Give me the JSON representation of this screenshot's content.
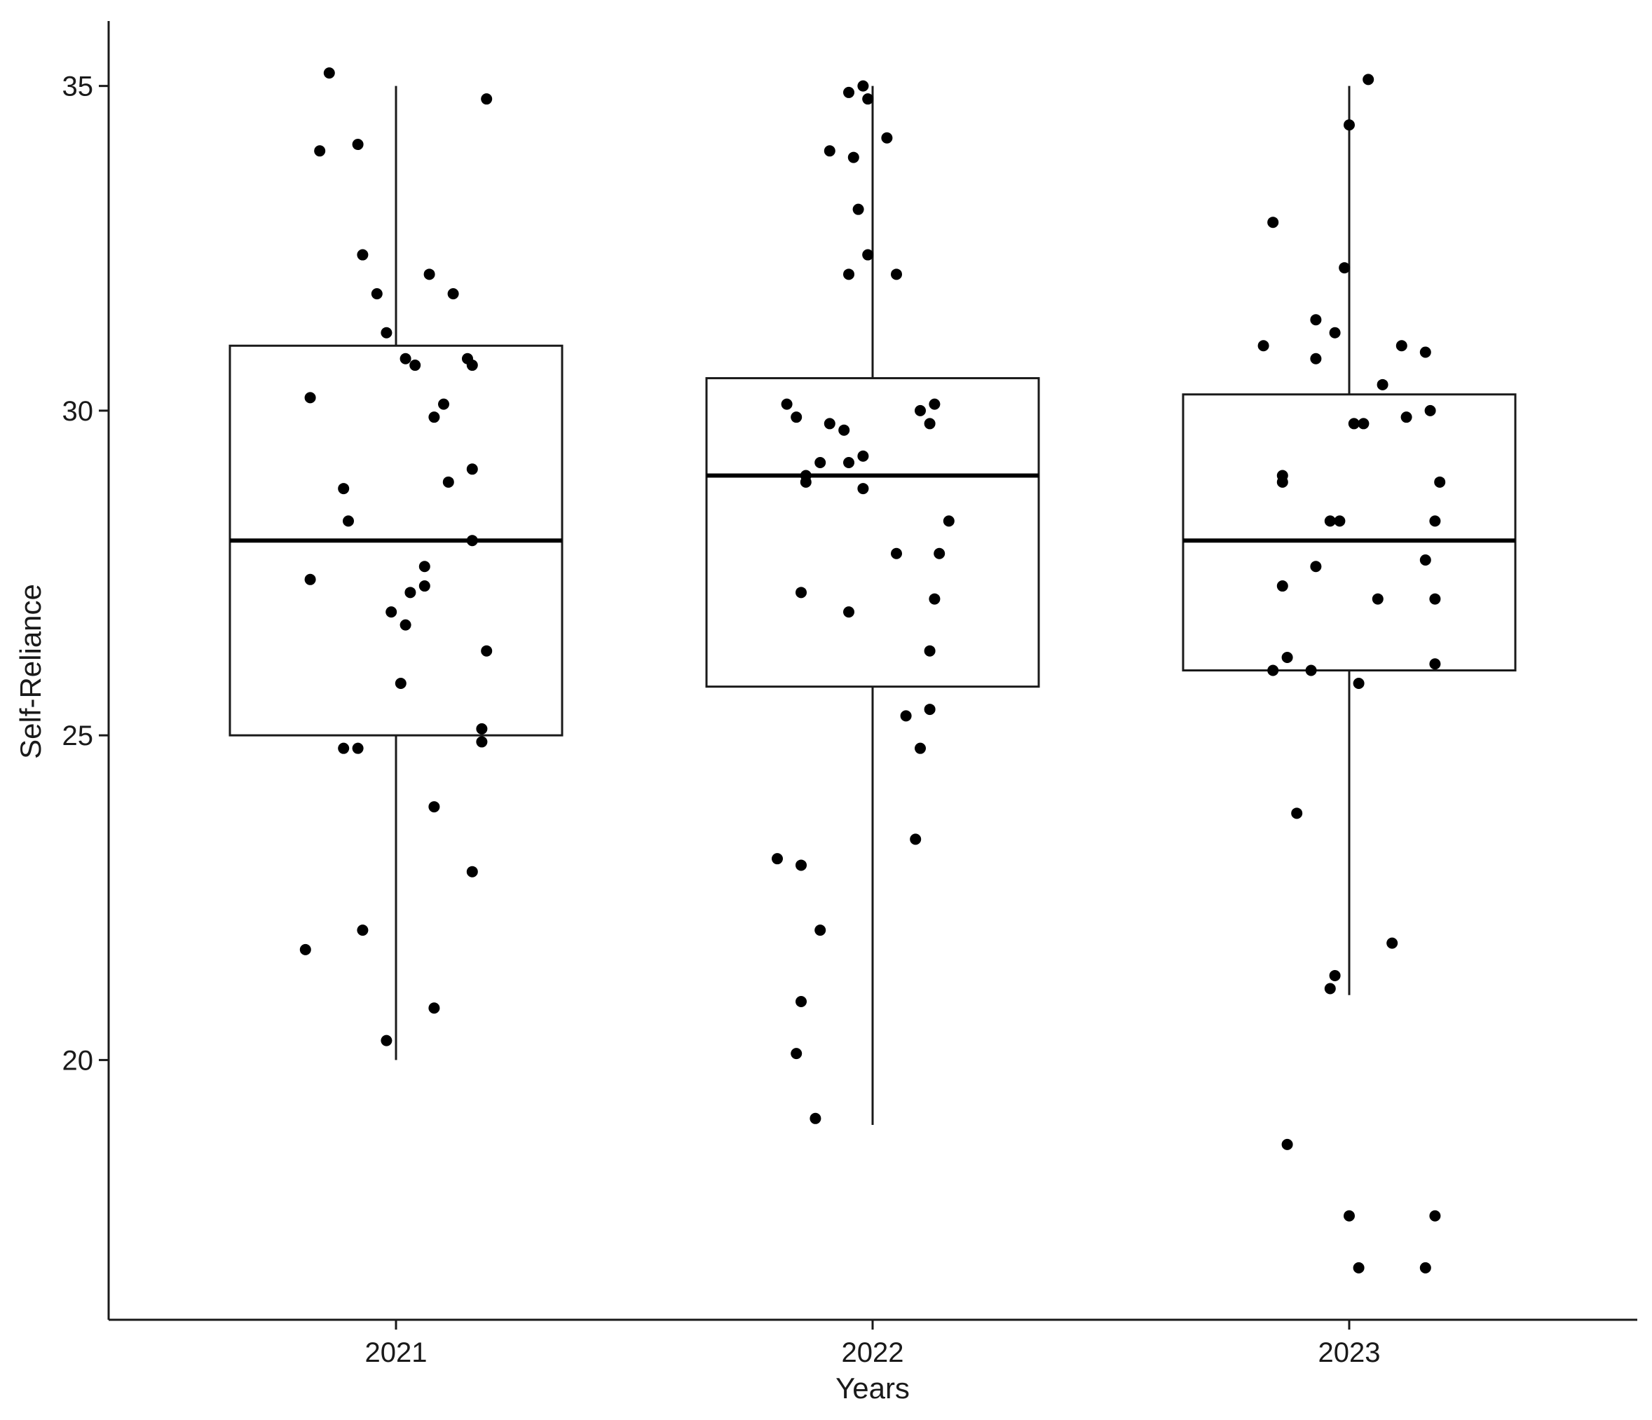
{
  "chart_data": {
    "type": "box",
    "xlabel": "Years",
    "ylabel": "Self-Reliance",
    "ylim": [
      16.0,
      36.0
    ],
    "yticks": [
      20,
      25,
      30,
      35
    ],
    "categories": [
      "2021",
      "2022",
      "2023"
    ],
    "grid": false,
    "boxes": [
      {
        "category": "2021",
        "whisker_low": 20.0,
        "q1": 25.0,
        "median": 28.0,
        "q3": 31.0,
        "whisker_high": 35.0
      },
      {
        "category": "2022",
        "whisker_low": 19.0,
        "q1": 25.75,
        "median": 29.0,
        "q3": 30.5,
        "whisker_high": 35.0
      },
      {
        "category": "2023",
        "whisker_low": 21.0,
        "q1": 26.0,
        "median": 28.0,
        "q3": 30.25,
        "whisker_high": 35.0
      }
    ],
    "points": [
      {
        "category": "2021",
        "jitter": -0.14,
        "value": 35.2
      },
      {
        "category": "2021",
        "jitter": 0.19,
        "value": 34.8
      },
      {
        "category": "2021",
        "jitter": -0.16,
        "value": 34.0
      },
      {
        "category": "2021",
        "jitter": -0.08,
        "value": 34.1
      },
      {
        "category": "2021",
        "jitter": -0.07,
        "value": 32.4
      },
      {
        "category": "2021",
        "jitter": 0.07,
        "value": 32.1
      },
      {
        "category": "2021",
        "jitter": -0.04,
        "value": 31.8
      },
      {
        "category": "2021",
        "jitter": 0.12,
        "value": 31.8
      },
      {
        "category": "2021",
        "jitter": -0.02,
        "value": 31.2
      },
      {
        "category": "2021",
        "jitter": 0.02,
        "value": 30.8
      },
      {
        "category": "2021",
        "jitter": 0.04,
        "value": 30.7
      },
      {
        "category": "2021",
        "jitter": 0.15,
        "value": 30.8
      },
      {
        "category": "2021",
        "jitter": 0.16,
        "value": 30.7
      },
      {
        "category": "2021",
        "jitter": -0.18,
        "value": 30.2
      },
      {
        "category": "2021",
        "jitter": 0.1,
        "value": 30.1
      },
      {
        "category": "2021",
        "jitter": 0.08,
        "value": 29.9
      },
      {
        "category": "2021",
        "jitter": 0.16,
        "value": 29.1
      },
      {
        "category": "2021",
        "jitter": -0.11,
        "value": 28.8
      },
      {
        "category": "2021",
        "jitter": 0.11,
        "value": 28.9
      },
      {
        "category": "2021",
        "jitter": -0.1,
        "value": 28.3
      },
      {
        "category": "2021",
        "jitter": 0.16,
        "value": 28.0
      },
      {
        "category": "2021",
        "jitter": 0.06,
        "value": 27.6
      },
      {
        "category": "2021",
        "jitter": -0.18,
        "value": 27.4
      },
      {
        "category": "2021",
        "jitter": 0.03,
        "value": 27.2
      },
      {
        "category": "2021",
        "jitter": 0.06,
        "value": 27.3
      },
      {
        "category": "2021",
        "jitter": -0.01,
        "value": 26.9
      },
      {
        "category": "2021",
        "jitter": 0.02,
        "value": 26.7
      },
      {
        "category": "2021",
        "jitter": 0.19,
        "value": 26.3
      },
      {
        "category": "2021",
        "jitter": 0.01,
        "value": 25.8
      },
      {
        "category": "2021",
        "jitter": 0.18,
        "value": 25.1
      },
      {
        "category": "2021",
        "jitter": 0.18,
        "value": 24.9
      },
      {
        "category": "2021",
        "jitter": -0.11,
        "value": 24.8
      },
      {
        "category": "2021",
        "jitter": -0.08,
        "value": 24.8
      },
      {
        "category": "2021",
        "jitter": 0.08,
        "value": 23.9
      },
      {
        "category": "2021",
        "jitter": 0.16,
        "value": 22.9
      },
      {
        "category": "2021",
        "jitter": -0.07,
        "value": 22.0
      },
      {
        "category": "2021",
        "jitter": -0.19,
        "value": 21.7
      },
      {
        "category": "2021",
        "jitter": 0.08,
        "value": 20.8
      },
      {
        "category": "2021",
        "jitter": -0.02,
        "value": 20.3
      },
      {
        "category": "2022",
        "jitter": -0.02,
        "value": 35.0
      },
      {
        "category": "2022",
        "jitter": -0.05,
        "value": 34.9
      },
      {
        "category": "2022",
        "jitter": -0.01,
        "value": 34.8
      },
      {
        "category": "2022",
        "jitter": 0.03,
        "value": 34.2
      },
      {
        "category": "2022",
        "jitter": -0.09,
        "value": 34.0
      },
      {
        "category": "2022",
        "jitter": -0.04,
        "value": 33.9
      },
      {
        "category": "2022",
        "jitter": -0.03,
        "value": 33.1
      },
      {
        "category": "2022",
        "jitter": -0.01,
        "value": 32.4
      },
      {
        "category": "2022",
        "jitter": -0.05,
        "value": 32.1
      },
      {
        "category": "2022",
        "jitter": 0.05,
        "value": 32.1
      },
      {
        "category": "2022",
        "jitter": -0.18,
        "value": 30.1
      },
      {
        "category": "2022",
        "jitter": 0.1,
        "value": 30.0
      },
      {
        "category": "2022",
        "jitter": 0.13,
        "value": 30.1
      },
      {
        "category": "2022",
        "jitter": -0.16,
        "value": 29.9
      },
      {
        "category": "2022",
        "jitter": -0.09,
        "value": 29.8
      },
      {
        "category": "2022",
        "jitter": -0.06,
        "value": 29.7
      },
      {
        "category": "2022",
        "jitter": 0.12,
        "value": 29.8
      },
      {
        "category": "2022",
        "jitter": -0.02,
        "value": 29.3
      },
      {
        "category": "2022",
        "jitter": -0.11,
        "value": 29.2
      },
      {
        "category": "2022",
        "jitter": -0.05,
        "value": 29.2
      },
      {
        "category": "2022",
        "jitter": -0.14,
        "value": 29.0
      },
      {
        "category": "2022",
        "jitter": -0.14,
        "value": 28.9
      },
      {
        "category": "2022",
        "jitter": -0.02,
        "value": 28.8
      },
      {
        "category": "2022",
        "jitter": 0.16,
        "value": 28.3
      },
      {
        "category": "2022",
        "jitter": 0.05,
        "value": 27.8
      },
      {
        "category": "2022",
        "jitter": 0.14,
        "value": 27.8
      },
      {
        "category": "2022",
        "jitter": -0.15,
        "value": 27.2
      },
      {
        "category": "2022",
        "jitter": 0.13,
        "value": 27.1
      },
      {
        "category": "2022",
        "jitter": -0.05,
        "value": 26.9
      },
      {
        "category": "2022",
        "jitter": 0.12,
        "value": 26.3
      },
      {
        "category": "2022",
        "jitter": 0.07,
        "value": 25.3
      },
      {
        "category": "2022",
        "jitter": 0.12,
        "value": 25.4
      },
      {
        "category": "2022",
        "jitter": 0.1,
        "value": 24.8
      },
      {
        "category": "2022",
        "jitter": 0.09,
        "value": 23.4
      },
      {
        "category": "2022",
        "jitter": -0.2,
        "value": 23.1
      },
      {
        "category": "2022",
        "jitter": -0.15,
        "value": 23.0
      },
      {
        "category": "2022",
        "jitter": -0.11,
        "value": 22.0
      },
      {
        "category": "2022",
        "jitter": -0.15,
        "value": 20.9
      },
      {
        "category": "2022",
        "jitter": -0.16,
        "value": 20.1
      },
      {
        "category": "2022",
        "jitter": -0.12,
        "value": 19.1
      },
      {
        "category": "2023",
        "jitter": 0.04,
        "value": 35.1
      },
      {
        "category": "2023",
        "jitter": 0.0,
        "value": 34.4
      },
      {
        "category": "2023",
        "jitter": -0.16,
        "value": 32.9
      },
      {
        "category": "2023",
        "jitter": -0.01,
        "value": 32.2
      },
      {
        "category": "2023",
        "jitter": -0.07,
        "value": 31.4
      },
      {
        "category": "2023",
        "jitter": -0.03,
        "value": 31.2
      },
      {
        "category": "2023",
        "jitter": -0.18,
        "value": 31.0
      },
      {
        "category": "2023",
        "jitter": 0.11,
        "value": 31.0
      },
      {
        "category": "2023",
        "jitter": 0.16,
        "value": 30.9
      },
      {
        "category": "2023",
        "jitter": -0.07,
        "value": 30.8
      },
      {
        "category": "2023",
        "jitter": 0.07,
        "value": 30.4
      },
      {
        "category": "2023",
        "jitter": 0.17,
        "value": 30.0
      },
      {
        "category": "2023",
        "jitter": 0.01,
        "value": 29.8
      },
      {
        "category": "2023",
        "jitter": 0.03,
        "value": 29.8
      },
      {
        "category": "2023",
        "jitter": 0.12,
        "value": 29.9
      },
      {
        "category": "2023",
        "jitter": -0.14,
        "value": 29.0
      },
      {
        "category": "2023",
        "jitter": -0.14,
        "value": 28.9
      },
      {
        "category": "2023",
        "jitter": 0.19,
        "value": 28.9
      },
      {
        "category": "2023",
        "jitter": -0.04,
        "value": 28.3
      },
      {
        "category": "2023",
        "jitter": -0.02,
        "value": 28.3
      },
      {
        "category": "2023",
        "jitter": 0.18,
        "value": 28.3
      },
      {
        "category": "2023",
        "jitter": 0.16,
        "value": 27.7
      },
      {
        "category": "2023",
        "jitter": -0.07,
        "value": 27.6
      },
      {
        "category": "2023",
        "jitter": -0.14,
        "value": 27.3
      },
      {
        "category": "2023",
        "jitter": 0.06,
        "value": 27.1
      },
      {
        "category": "2023",
        "jitter": 0.18,
        "value": 27.1
      },
      {
        "category": "2023",
        "jitter": -0.13,
        "value": 26.2
      },
      {
        "category": "2023",
        "jitter": 0.18,
        "value": 26.1
      },
      {
        "category": "2023",
        "jitter": -0.16,
        "value": 26.0
      },
      {
        "category": "2023",
        "jitter": -0.08,
        "value": 26.0
      },
      {
        "category": "2023",
        "jitter": 0.02,
        "value": 25.8
      },
      {
        "category": "2023",
        "jitter": -0.11,
        "value": 23.8
      },
      {
        "category": "2023",
        "jitter": 0.09,
        "value": 21.8
      },
      {
        "category": "2023",
        "jitter": -0.03,
        "value": 21.3
      },
      {
        "category": "2023",
        "jitter": -0.04,
        "value": 21.1
      },
      {
        "category": "2023",
        "jitter": -0.13,
        "value": 18.7
      },
      {
        "category": "2023",
        "jitter": 0.0,
        "value": 17.6
      },
      {
        "category": "2023",
        "jitter": 0.18,
        "value": 17.6
      },
      {
        "category": "2023",
        "jitter": 0.02,
        "value": 16.8
      },
      {
        "category": "2023",
        "jitter": 0.16,
        "value": 16.8
      }
    ]
  }
}
